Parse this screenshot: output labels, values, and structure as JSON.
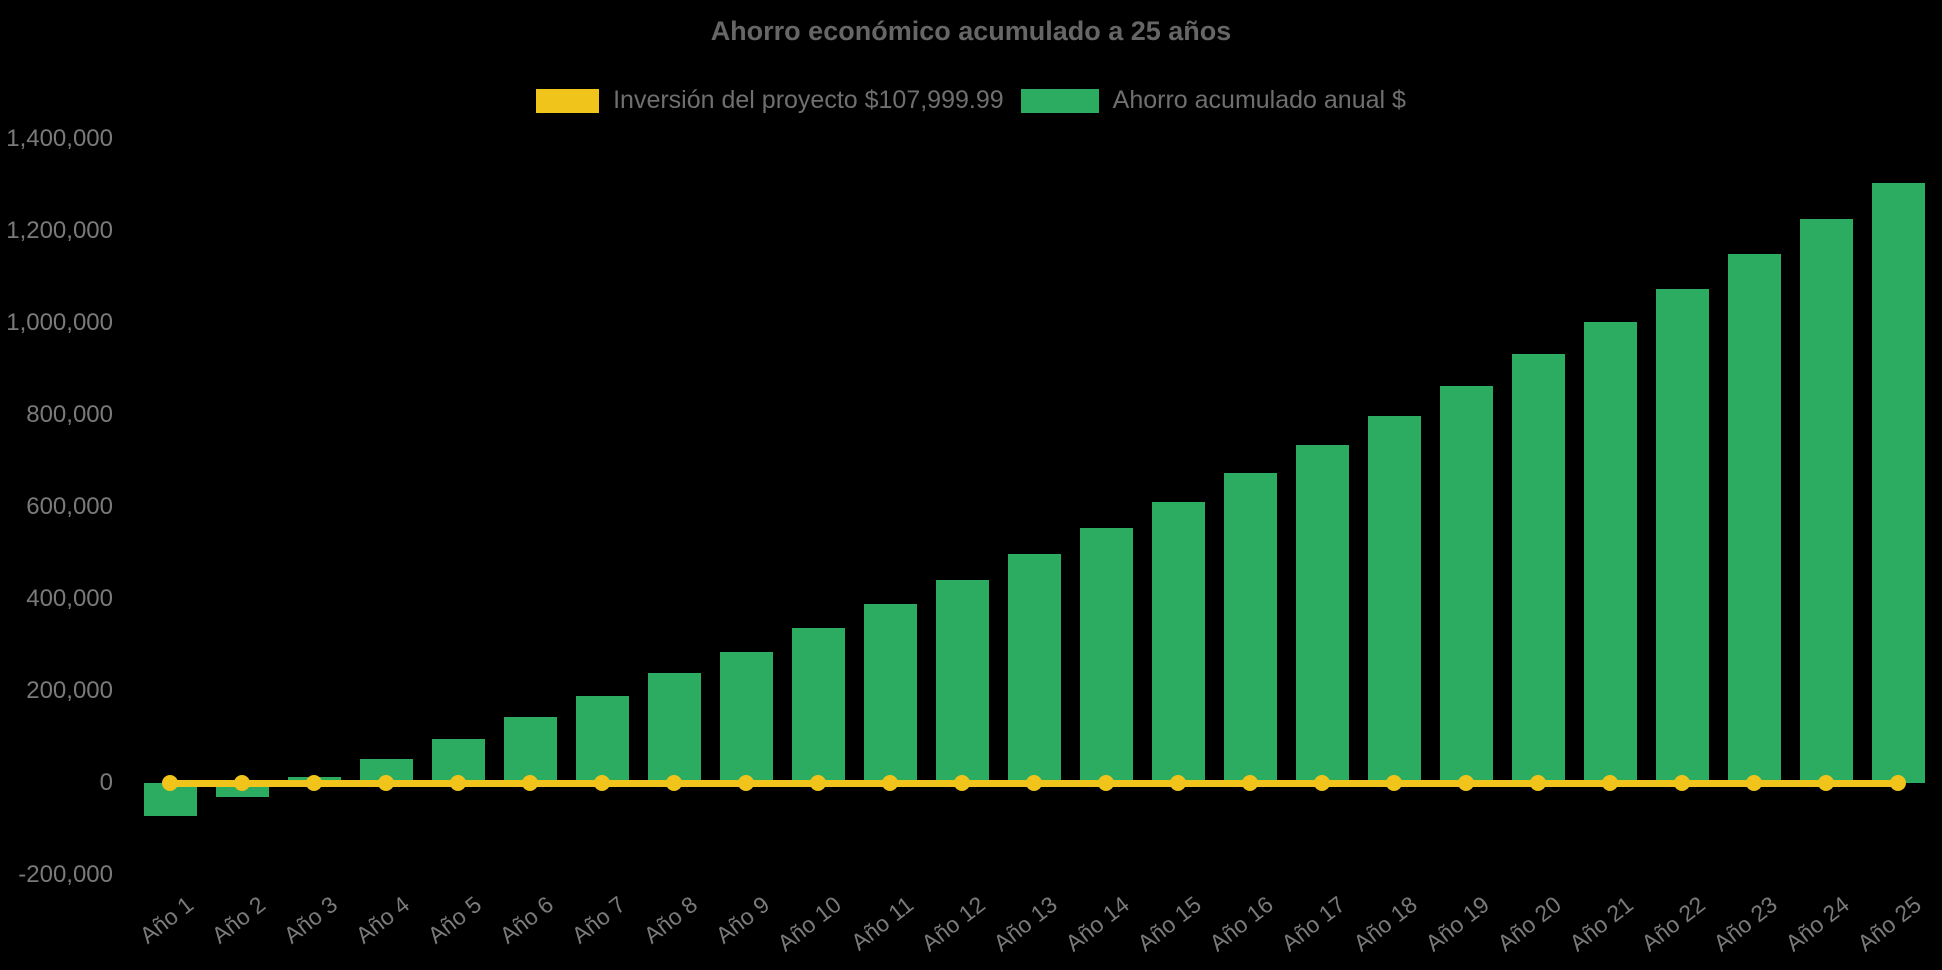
{
  "chart_data": {
    "type": "bar",
    "title": "Ahorro económico acumulado a 25 años",
    "legend_position": "top",
    "grid": false,
    "background": "#000000",
    "colors": {
      "background": "#000000",
      "bar": "#2bac60",
      "line": "#f0c41b",
      "title_text": "#666666",
      "legend_text": "#6f6f6f",
      "axis_text": "#7a7a7a"
    },
    "ylim": [
      -200000,
      1400000
    ],
    "ytick_step": 200000,
    "ytick_labels": [
      "-200,000",
      "0",
      "200,000",
      "400,000",
      "600,000",
      "800,000",
      "1,000,000",
      "1,200,000",
      "1,400,000"
    ],
    "categories": [
      "Año 1",
      "Año 2",
      "Año 3",
      "Año 4",
      "Año 5",
      "Año 6",
      "Año 7",
      "Año 8",
      "Año 9",
      "Año 10",
      "Año 11",
      "Año 12",
      "Año 13",
      "Año 14",
      "Año 15",
      "Año 16",
      "Año 17",
      "Año 18",
      "Año 19",
      "Año 20",
      "Año 21",
      "Año 22",
      "Año 23",
      "Año 24",
      "Año 25"
    ],
    "series": [
      {
        "name": "Inversión del proyecto $107,999.99",
        "type": "line",
        "color": "#f0c41b",
        "constant_y": 0,
        "values": [
          0,
          0,
          0,
          0,
          0,
          0,
          0,
          0,
          0,
          0,
          0,
          0,
          0,
          0,
          0,
          0,
          0,
          0,
          0,
          0,
          0,
          0,
          0,
          0,
          0
        ]
      },
      {
        "name": "Ahorro acumulado anual $",
        "type": "bar",
        "color": "#2bac60",
        "values": [
          -71500,
          -31500,
          12500,
          52000,
          96500,
          143000,
          189000,
          238500,
          284000,
          337000,
          389000,
          441500,
          498000,
          553500,
          611500,
          673000,
          735000,
          798500,
          864000,
          932000,
          1001500,
          1074000,
          1149500,
          1225500,
          1305000
        ]
      }
    ]
  }
}
